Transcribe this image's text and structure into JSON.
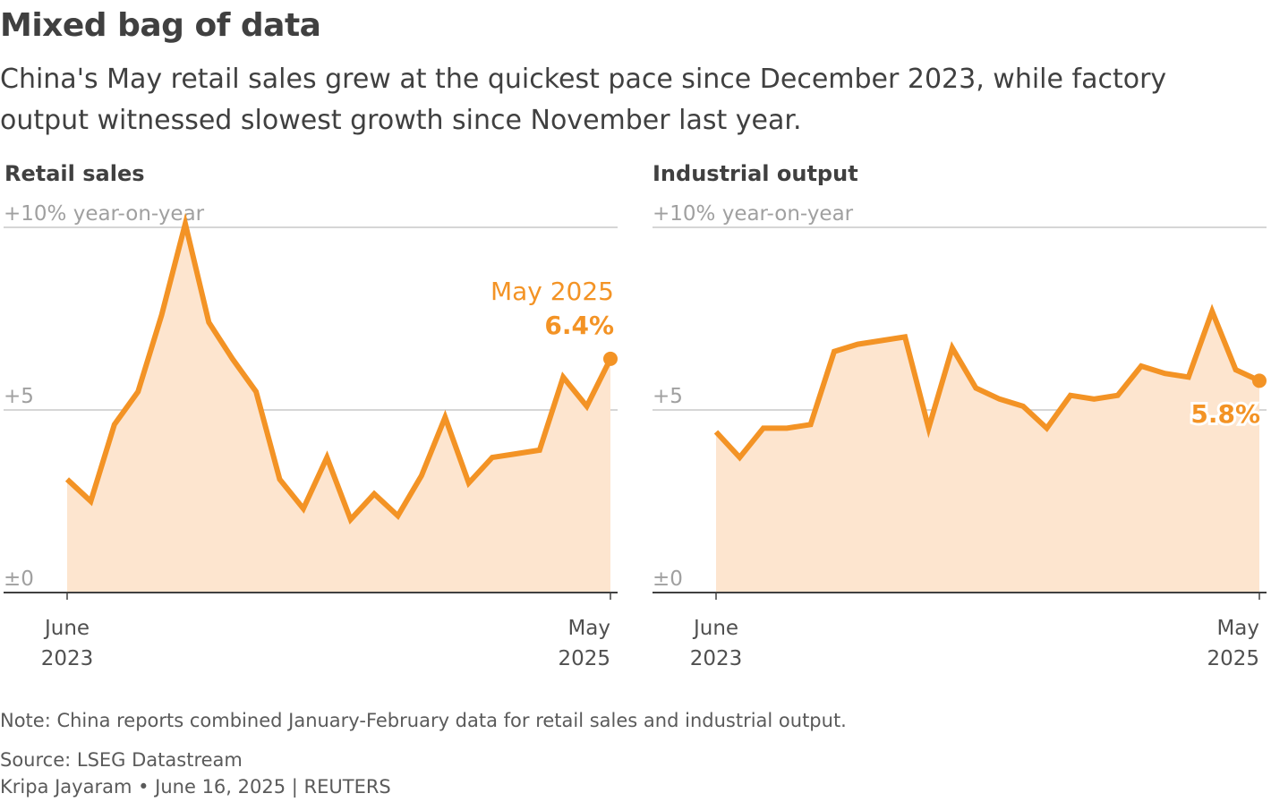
{
  "header": {
    "title": "Mixed bag of data",
    "subtitle": "China's May retail sales grew at the quickest pace since December 2023, while factory output witnessed slowest growth since November last year."
  },
  "footer": {
    "note": "Note: China reports combined January-February data for retail sales and industrial output.",
    "source": "Source: LSEG Datastream",
    "credit": "Kripa Jayaram • June 16, 2025 | REUTERS"
  },
  "colors": {
    "line": "#f39325",
    "fill": "#fde5cf",
    "grid": "#c8c8c8",
    "axis": "#404040",
    "tick_label": "#a0a0a0"
  },
  "chart_data": [
    {
      "type": "area",
      "title": "Retail sales",
      "ylabel": "+10% year-on-year",
      "ylim": [
        0,
        10
      ],
      "yticks": [
        {
          "value": 10,
          "label": "+10% year-on-year"
        },
        {
          "value": 5,
          "label": "+5"
        },
        {
          "value": 0,
          "label": "±0"
        }
      ],
      "x_start_label": [
        "June",
        "2023"
      ],
      "x_end_label": [
        "May",
        "2025"
      ],
      "values": [
        3.1,
        2.5,
        4.6,
        5.5,
        7.6,
        10.1,
        7.4,
        6.4,
        5.5,
        3.1,
        2.3,
        3.7,
        2.0,
        2.7,
        2.1,
        3.2,
        4.8,
        3.0,
        3.7,
        3.8,
        3.9,
        5.9,
        5.1,
        6.4
      ],
      "annotation": {
        "label": "May 2025",
        "value": "6.4%"
      }
    },
    {
      "type": "area",
      "title": "Industrial output",
      "ylabel": "+10% year-on-year",
      "ylim": [
        0,
        10
      ],
      "yticks": [
        {
          "value": 10,
          "label": "+10% year-on-year"
        },
        {
          "value": 5,
          "label": "+5"
        },
        {
          "value": 0,
          "label": "±0"
        }
      ],
      "x_start_label": [
        "June",
        "2023"
      ],
      "x_end_label": [
        "May",
        "2025"
      ],
      "values": [
        4.4,
        3.7,
        4.5,
        4.5,
        4.6,
        6.6,
        6.8,
        6.9,
        7.0,
        4.5,
        6.7,
        5.6,
        5.3,
        5.1,
        4.5,
        5.4,
        5.3,
        5.4,
        6.2,
        6.0,
        5.9,
        7.7,
        6.1,
        5.8
      ],
      "annotation": {
        "label": "",
        "value": "5.8%"
      }
    }
  ]
}
